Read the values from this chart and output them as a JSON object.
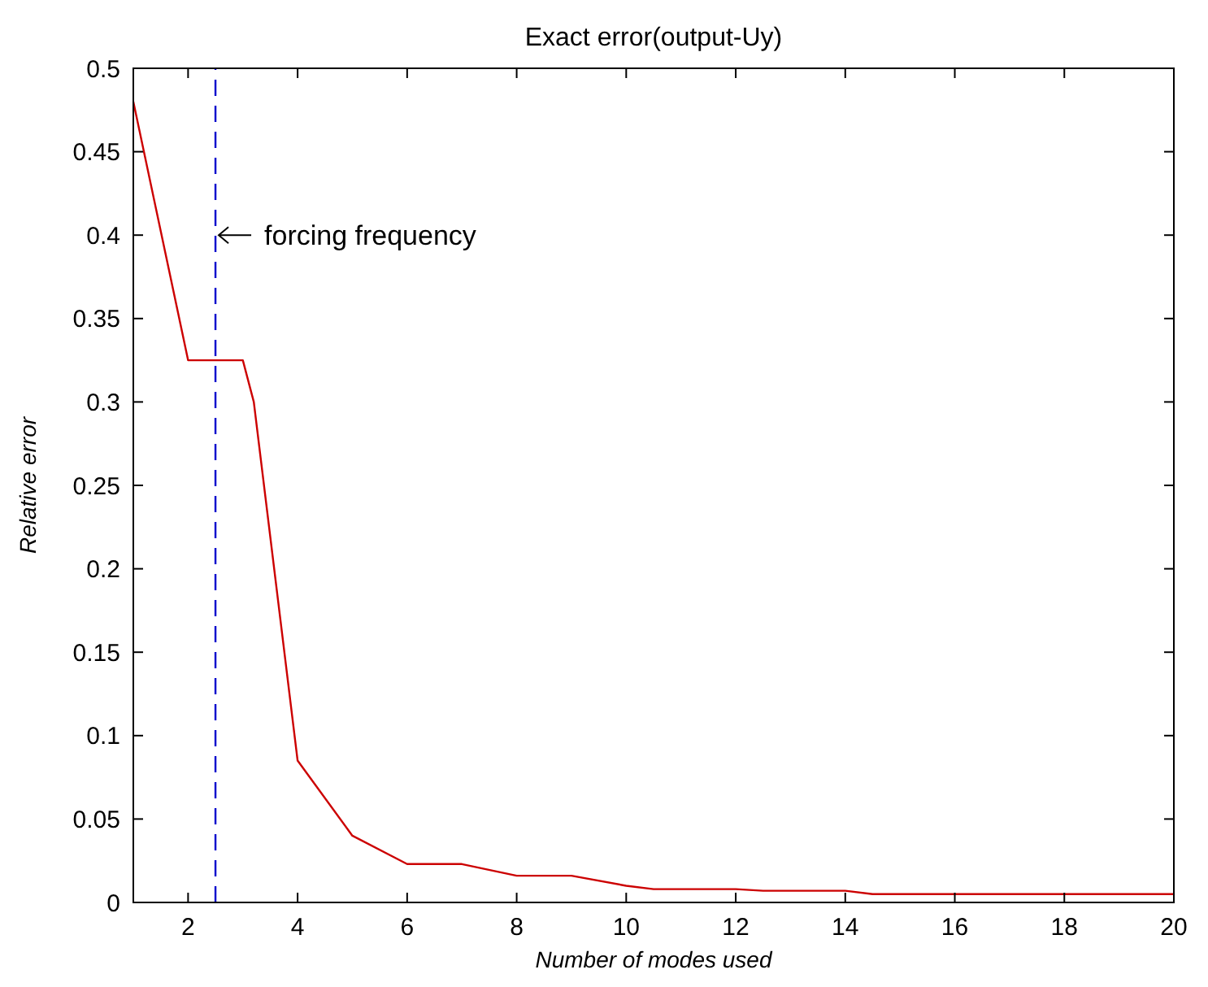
{
  "chart_data": {
    "type": "line",
    "title": "Exact error(output-Uy)",
    "xlabel": "Number of modes used",
    "ylabel": "Relative error",
    "x": [
      1,
      2,
      3,
      3.2,
      4,
      5,
      6,
      7,
      8,
      9,
      10,
      10.5,
      12,
      12.5,
      14,
      14.5,
      16,
      18,
      20
    ],
    "series": [
      {
        "color": "#cc0000",
        "values": [
          0.48,
          0.325,
          0.325,
          0.3,
          0.085,
          0.04,
          0.023,
          0.023,
          0.016,
          0.016,
          0.01,
          0.008,
          0.008,
          0.007,
          0.007,
          0.005,
          0.005,
          0.005,
          0.005
        ]
      }
    ],
    "xlim": [
      1,
      20
    ],
    "xticks": [
      2,
      4,
      6,
      8,
      10,
      12,
      14,
      16,
      18,
      20
    ],
    "ylim": [
      0,
      0.5
    ],
    "yticks": [
      0,
      0.05,
      0.1,
      0.15,
      0.2,
      0.25,
      0.3,
      0.35,
      0.4,
      0.45,
      0.5
    ],
    "ref_lines": [
      {
        "axis": "x",
        "value": 2.5,
        "color": "#0000cc",
        "line_style": "dashed"
      }
    ],
    "annotations": [
      {
        "text": "forcing frequency",
        "x": 2.5,
        "y": 0.4
      }
    ],
    "grid": false,
    "marker": "none",
    "line_style": "solid"
  }
}
